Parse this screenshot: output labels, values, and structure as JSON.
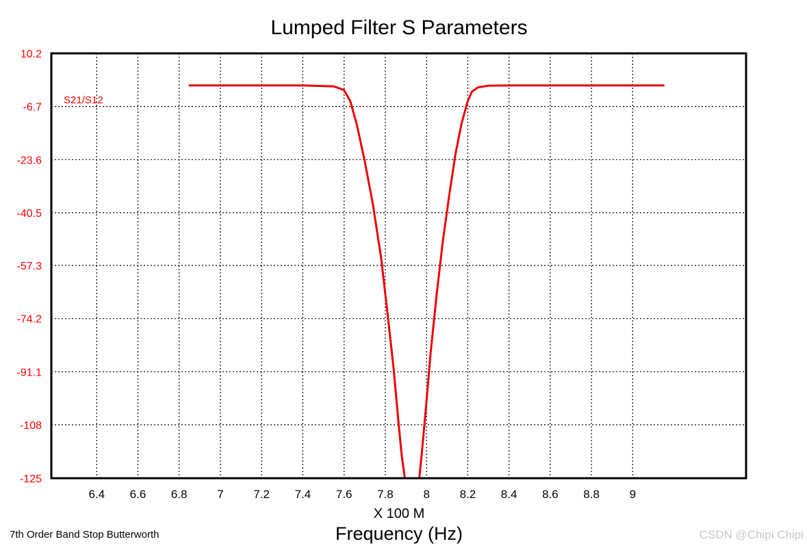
{
  "chart_data": {
    "type": "line",
    "title": "Lumped Filter S Parameters",
    "xlabel": "Frequency (Hz)",
    "x_scale_label": "X 100 M",
    "ylabel": "",
    "xlim": [
      6.18,
      9.55
    ],
    "ylim": [
      -125,
      10.2
    ],
    "x_ticks": [
      "6.4",
      "6.6",
      "6.8",
      "7",
      "7.2",
      "7.4",
      "7.6",
      "7.8",
      "8",
      "8.2",
      "8.4",
      "8.6",
      "8.8",
      "9"
    ],
    "x_tick_values": [
      6.4,
      6.6,
      6.8,
      7.0,
      7.2,
      7.4,
      7.6,
      7.8,
      8.0,
      8.2,
      8.4,
      8.6,
      8.8,
      9.0
    ],
    "y_ticks": [
      "10.2",
      "-6.7",
      "-23.6",
      "-40.5",
      "-57.3",
      "-74.2",
      "-91.1",
      "-108",
      "-125"
    ],
    "y_tick_values": [
      10.2,
      -6.7,
      -23.6,
      -40.5,
      -57.3,
      -74.2,
      -91.1,
      -108,
      -125
    ],
    "x_grid": [
      6.4,
      6.6,
      6.8,
      7.0,
      7.2,
      7.4,
      7.6,
      7.8,
      8.0,
      8.2,
      8.4,
      8.6,
      8.8,
      9.0
    ],
    "grid": true,
    "series": [
      {
        "name": "S21/S12",
        "color": "#ee0000",
        "x": [
          6.85,
          7.0,
          7.2,
          7.4,
          7.55,
          7.6,
          7.63,
          7.66,
          7.7,
          7.74,
          7.78,
          7.81,
          7.84,
          7.865,
          7.88,
          7.895,
          7.965,
          7.98,
          7.995,
          8.02,
          8.05,
          8.08,
          8.11,
          8.14,
          8.17,
          8.2,
          8.22,
          8.25,
          8.3,
          8.4,
          8.6,
          8.8,
          9.0,
          9.15
        ],
        "y": [
          0.0,
          0.0,
          0.0,
          0.0,
          -0.3,
          -1.5,
          -5.0,
          -12.0,
          -24.0,
          -38.0,
          -55.0,
          -72.0,
          -90.0,
          -108.0,
          -118.0,
          -125.0,
          -125.0,
          -115.0,
          -104.0,
          -85.0,
          -66.0,
          -49.0,
          -35.0,
          -22.0,
          -12.0,
          -5.0,
          -2.0,
          -0.6,
          -0.1,
          0.0,
          0.0,
          0.0,
          0.0,
          0.0
        ]
      }
    ],
    "legend": [
      "S21/S12"
    ]
  },
  "footnote": "7th Order Band Stop Butterworth",
  "watermark": "CSDN @Chipi Chipi"
}
